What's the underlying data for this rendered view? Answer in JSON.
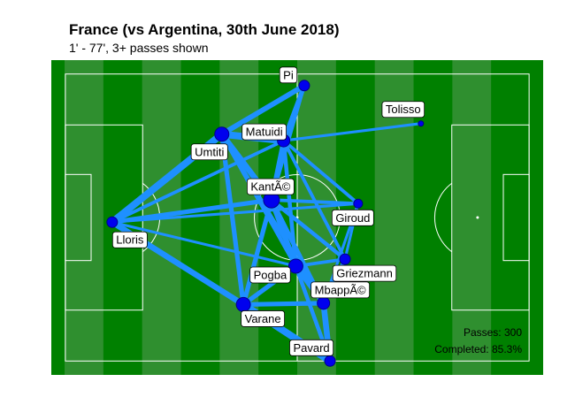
{
  "title": "France (vs Argentina, 30th June 2018)",
  "subtitle": "1' - 77', 3+ passes shown",
  "stats": {
    "passes": "Passes: 300",
    "completed": "Completed: 85.3%"
  },
  "colors": {
    "pitch_dark": "#008000",
    "pitch_light": "#2f8f2f",
    "lines": "#ffffff",
    "pass_edge": "#1e90ff",
    "node_fill": "#0000ee",
    "node_stroke": "#00008b",
    "label_bg": "#ffffff"
  },
  "chart_data": {
    "type": "scatter",
    "title": "France (vs Argentina, 30th June 2018)",
    "subtitle": "1' - 77', 3+ passes shown",
    "pitch": {
      "length": 105,
      "width": 68
    },
    "xlim": [
      0,
      105
    ],
    "ylim": [
      0,
      68
    ],
    "grid": false,
    "legend": "none",
    "players": [
      {
        "name": "Lloris",
        "x": 13.0,
        "y": 33.0,
        "label_dx": 20,
        "label_dy": -20,
        "size": 6
      },
      {
        "name": "Umtiti",
        "x": 36.4,
        "y": 52.0,
        "label_dx": -14,
        "label_dy": -20,
        "size": 8
      },
      {
        "name": "Pi",
        "x": 54.0,
        "y": 62.5,
        "label_dx": -18,
        "label_dy": 12,
        "size": 6
      },
      {
        "name": "Matuidi",
        "x": 49.6,
        "y": 50.6,
        "label_dx": -22,
        "label_dy": 10,
        "size": 7
      },
      {
        "name": "KantÃ©",
        "x": 47.0,
        "y": 37.8,
        "label_dx": -1,
        "label_dy": 15,
        "size": 9
      },
      {
        "name": "Giroud",
        "x": 65.5,
        "y": 37.0,
        "label_dx": -6,
        "label_dy": -16,
        "size": 5
      },
      {
        "name": "Griezmann",
        "x": 62.7,
        "y": 25.0,
        "label_dx": 22,
        "label_dy": -16,
        "size": 6
      },
      {
        "name": "Pogba",
        "x": 52.2,
        "y": 23.5,
        "label_dx": -29,
        "label_dy": -10,
        "size": 8
      },
      {
        "name": "Varane",
        "x": 41.0,
        "y": 15.2,
        "label_dx": 22,
        "label_dy": -16,
        "size": 8
      },
      {
        "name": "MbappÃ©",
        "x": 58.1,
        "y": 15.5,
        "label_dx": 19,
        "label_dy": 15,
        "size": 7
      },
      {
        "name": "Pavard",
        "x": 59.5,
        "y": 3.0,
        "label_dx": -21,
        "label_dy": 15,
        "size": 6
      },
      {
        "name": "Tolisso",
        "x": 78.9,
        "y": 54.3,
        "label_dx": -20,
        "label_dy": 16,
        "size": 3
      }
    ],
    "passes": [
      {
        "from": "Lloris",
        "to": "Umtiti",
        "count": 10
      },
      {
        "from": "Lloris",
        "to": "Varane",
        "count": 8
      },
      {
        "from": "Lloris",
        "to": "KantÃ©",
        "count": 6
      },
      {
        "from": "Lloris",
        "to": "Matuidi",
        "count": 4
      },
      {
        "from": "Lloris",
        "to": "Pogba",
        "count": 3
      },
      {
        "from": "Lloris",
        "to": "Giroud",
        "count": 3
      },
      {
        "from": "Umtiti",
        "to": "Matuidi",
        "count": 10
      },
      {
        "from": "Umtiti",
        "to": "Pi",
        "count": 7
      },
      {
        "from": "Umtiti",
        "to": "KantÃ©",
        "count": 8
      },
      {
        "from": "Umtiti",
        "to": "Varane",
        "count": 6
      },
      {
        "from": "Umtiti",
        "to": "Pogba",
        "count": 5
      },
      {
        "from": "Umtiti",
        "to": "MbappÃ©",
        "count": 4
      },
      {
        "from": "Pi",
        "to": "Matuidi",
        "count": 6
      },
      {
        "from": "Pi",
        "to": "KantÃ©",
        "count": 4
      },
      {
        "from": "Matuidi",
        "to": "KantÃ©",
        "count": 6
      },
      {
        "from": "Matuidi",
        "to": "Giroud",
        "count": 4
      },
      {
        "from": "Matuidi",
        "to": "Tolisso",
        "count": 3
      },
      {
        "from": "Matuidi",
        "to": "Pogba",
        "count": 5
      },
      {
        "from": "Matuidi",
        "to": "Griezmann",
        "count": 4
      },
      {
        "from": "KantÃ©",
        "to": "Giroud",
        "count": 4
      },
      {
        "from": "KantÃ©",
        "to": "Griezmann",
        "count": 5
      },
      {
        "from": "KantÃ©",
        "to": "Pogba",
        "count": 7
      },
      {
        "from": "KantÃ©",
        "to": "Varane",
        "count": 6
      },
      {
        "from": "KantÃ©",
        "to": "MbappÃ©",
        "count": 6
      },
      {
        "from": "KantÃ©",
        "to": "Pavard",
        "count": 4
      },
      {
        "from": "Giroud",
        "to": "Griezmann",
        "count": 3
      },
      {
        "from": "Giroud",
        "to": "MbappÃ©",
        "count": 3
      },
      {
        "from": "Griezmann",
        "to": "Pogba",
        "count": 4
      },
      {
        "from": "Griezmann",
        "to": "MbappÃ©",
        "count": 5
      },
      {
        "from": "Pogba",
        "to": "Varane",
        "count": 6
      },
      {
        "from": "Pogba",
        "to": "MbappÃ©",
        "count": 7
      },
      {
        "from": "Pogba",
        "to": "Pavard",
        "count": 5
      },
      {
        "from": "Varane",
        "to": "MbappÃ©",
        "count": 6
      },
      {
        "from": "Varane",
        "to": "Pavard",
        "count": 10
      },
      {
        "from": "MbappÃ©",
        "to": "Pavard",
        "count": 8
      }
    ]
  }
}
